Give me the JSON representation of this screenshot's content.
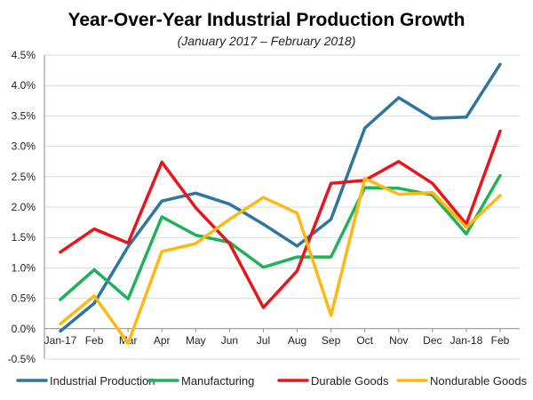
{
  "chart_data": {
    "type": "line",
    "title": "Year-Over-Year Industrial Production Growth",
    "subtitle": "(January 2017 – February 2018)",
    "xlabel": "",
    "ylabel": "",
    "categories": [
      "Jan-17",
      "Feb",
      "Mar",
      "Apr",
      "May",
      "Jun",
      "Jul",
      "Aug",
      "Sep",
      "Oct",
      "Nov",
      "Dec",
      "Jan-18",
      "Feb"
    ],
    "ylim": [
      -0.5,
      4.5
    ],
    "yticks": [
      -0.5,
      0.0,
      0.5,
      1.0,
      1.5,
      2.0,
      2.5,
      3.0,
      3.5,
      4.0,
      4.5
    ],
    "ytick_labels": [
      "-0.5%",
      "0.0%",
      "0.5%",
      "1.0%",
      "1.5%",
      "2.0%",
      "2.5%",
      "3.0%",
      "3.5%",
      "4.0%",
      "4.5%"
    ],
    "grid": true,
    "legend_position": "bottom",
    "series": [
      {
        "name": "Industrial Production",
        "color": "#2e75a0",
        "values": [
          -0.04,
          0.42,
          1.35,
          2.1,
          2.23,
          2.05,
          1.72,
          1.36,
          1.8,
          3.3,
          3.8,
          3.46,
          3.48,
          4.35
        ]
      },
      {
        "name": "Manufacturing",
        "color": "#1fb25a",
        "values": [
          0.48,
          0.97,
          0.49,
          1.84,
          1.54,
          1.42,
          1.01,
          1.18,
          1.18,
          2.32,
          2.31,
          2.2,
          1.56,
          2.52
        ]
      },
      {
        "name": "Durable Goods",
        "color": "#e8161b",
        "values": [
          1.26,
          1.64,
          1.41,
          2.74,
          1.99,
          1.4,
          0.35,
          0.95,
          2.39,
          2.44,
          2.75,
          2.39,
          1.72,
          3.25
        ]
      },
      {
        "name": "Nondurable Goods",
        "color": "#fdb813",
        "values": [
          0.08,
          0.54,
          -0.24,
          1.27,
          1.4,
          1.8,
          2.16,
          1.9,
          0.22,
          2.47,
          2.21,
          2.24,
          1.67,
          2.19
        ]
      }
    ]
  }
}
